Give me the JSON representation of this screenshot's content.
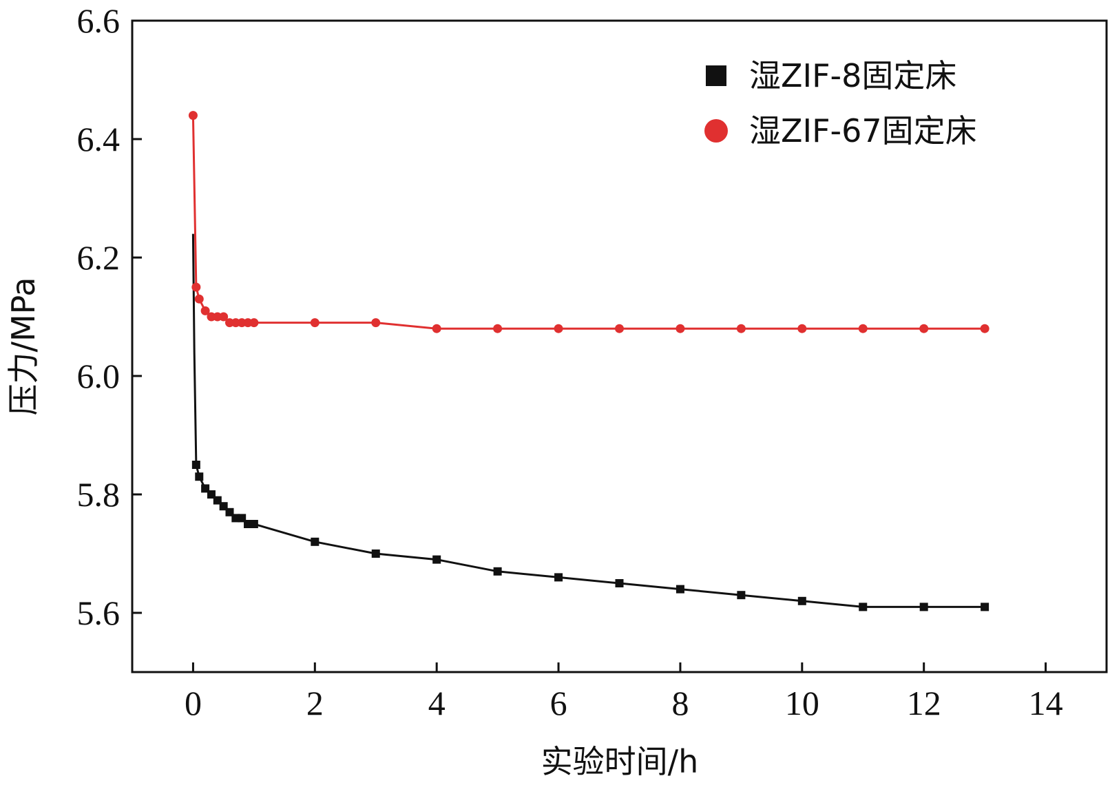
{
  "chart_data": {
    "type": "line",
    "xlabel": "实验时间/h",
    "ylabel": "压力/MPa",
    "xlim": [
      -1,
      15
    ],
    "ylim": [
      5.5,
      6.6
    ],
    "x_ticks": [
      "0",
      "2",
      "4",
      "6",
      "8",
      "10",
      "12",
      "14"
    ],
    "y_ticks": [
      "5.6",
      "5.8",
      "6.0",
      "6.2",
      "6.4",
      "6.6"
    ],
    "legend_position": "top-right",
    "grid": false,
    "series": [
      {
        "name": "湿ZIF-8固定床",
        "color": "#111111",
        "marker": "square",
        "points": [
          [
            0.05,
            5.85
          ],
          [
            0.1,
            5.83
          ],
          [
            0.2,
            5.81
          ],
          [
            0.3,
            5.8
          ],
          [
            0.4,
            5.79
          ],
          [
            0.5,
            5.78
          ],
          [
            0.6,
            5.77
          ],
          [
            0.7,
            5.76
          ],
          [
            0.8,
            5.76
          ],
          [
            0.9,
            5.75
          ],
          [
            1,
            5.75
          ],
          [
            2,
            5.72
          ],
          [
            3,
            5.7
          ],
          [
            4,
            5.69
          ],
          [
            5,
            5.67
          ],
          [
            6,
            5.66
          ],
          [
            7,
            5.65
          ],
          [
            8,
            5.64
          ],
          [
            9,
            5.63
          ],
          [
            10,
            5.62
          ],
          [
            11,
            5.61
          ],
          [
            12,
            5.61
          ],
          [
            13,
            5.61
          ]
        ]
      },
      {
        "name": "湿ZIF-67固定床",
        "color": "#e03030",
        "marker": "circle",
        "points": [
          [
            0,
            6.44
          ],
          [
            0.05,
            6.15
          ],
          [
            0.1,
            6.13
          ],
          [
            0.2,
            6.11
          ],
          [
            0.3,
            6.1
          ],
          [
            0.4,
            6.1
          ],
          [
            0.5,
            6.1
          ],
          [
            0.6,
            6.09
          ],
          [
            0.7,
            6.09
          ],
          [
            0.8,
            6.09
          ],
          [
            0.9,
            6.09
          ],
          [
            1,
            6.09
          ],
          [
            2,
            6.09
          ],
          [
            3,
            6.09
          ],
          [
            4,
            6.08
          ],
          [
            5,
            6.08
          ],
          [
            6,
            6.08
          ],
          [
            7,
            6.08
          ],
          [
            8,
            6.08
          ],
          [
            9,
            6.08
          ],
          [
            10,
            6.08
          ],
          [
            11,
            6.08
          ],
          [
            12,
            6.08
          ],
          [
            13,
            6.08
          ]
        ]
      }
    ]
  }
}
